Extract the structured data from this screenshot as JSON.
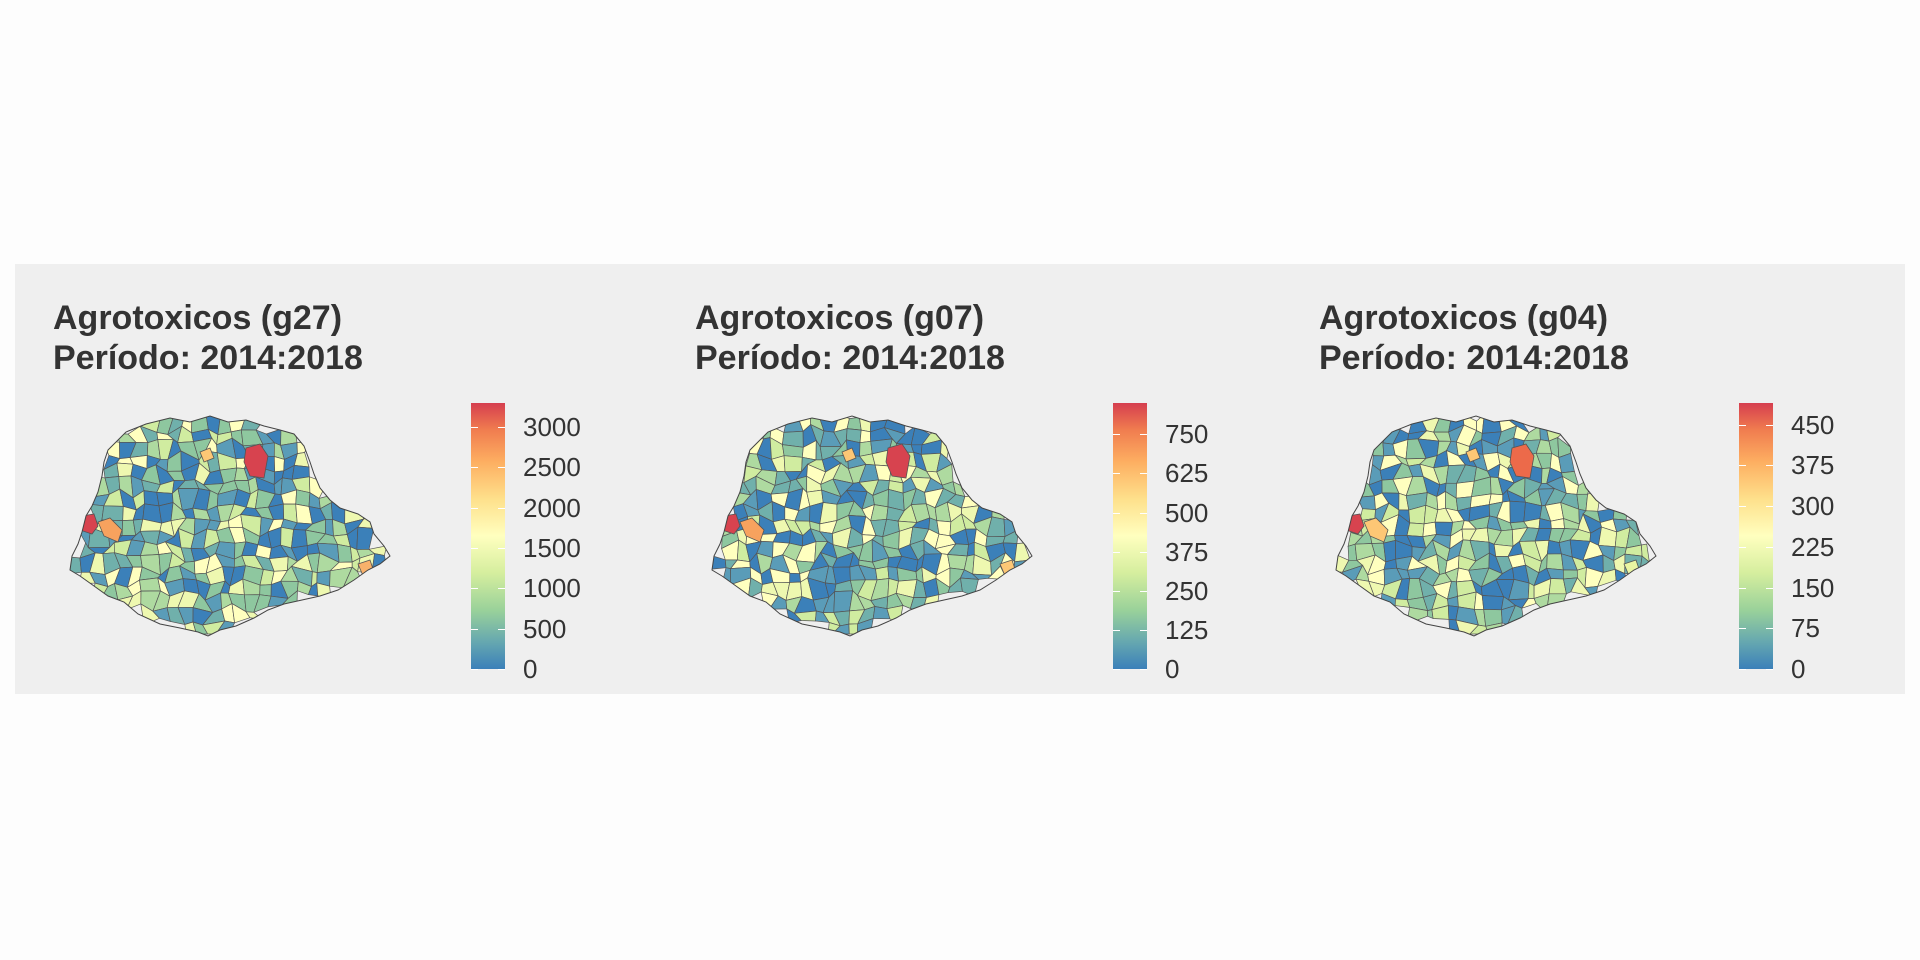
{
  "panels": [
    {
      "title_line1": "Agrotoxicos (g27)",
      "title_line2": "Período: 2014:2018",
      "legend": {
        "labels": [
          "3000",
          "2500",
          "2000",
          "1500",
          "1000",
          "500",
          "0"
        ],
        "values": [
          3000,
          2500,
          2000,
          1500,
          1000,
          500,
          0
        ],
        "max": 3300
      },
      "highlights": {
        "northeast": "#d7434f",
        "west": "#d7434f",
        "west_near": "#f7a25e",
        "east_coast": "#f8b16b"
      }
    },
    {
      "title_line1": "Agrotoxicos (g07)",
      "title_line2": "Período: 2014:2018",
      "legend": {
        "labels": [
          "750",
          "625",
          "500",
          "375",
          "250",
          "125",
          "0"
        ],
        "values": [
          750,
          625,
          500,
          375,
          250,
          125,
          0
        ],
        "max": 850
      },
      "highlights": {
        "northeast": "#d7434f",
        "west": "#d7434f",
        "west_near": "#f7a25e",
        "east_coast": "#fdc775"
      }
    },
    {
      "title_line1": "Agrotoxicos (g04)",
      "title_line2": "Período: 2014:2018",
      "legend": {
        "labels": [
          "450",
          "375",
          "300",
          "225",
          "150",
          "75",
          "0"
        ],
        "values": [
          450,
          375,
          300,
          225,
          150,
          75,
          0
        ],
        "max": 490
      },
      "highlights": {
        "northeast": "#ec6a4a",
        "west": "#d7434f",
        "west_near": "#fdc775",
        "east_coast": "#e9f5a2"
      }
    }
  ],
  "colors": {
    "background": "#efefef",
    "border": "#555555",
    "palette": [
      "#3b80b9",
      "#5a9cb8",
      "#70b0ab",
      "#8ec79f",
      "#aedaa0",
      "#d0eca0",
      "#eef8b0",
      "#ffffbf"
    ]
  }
}
